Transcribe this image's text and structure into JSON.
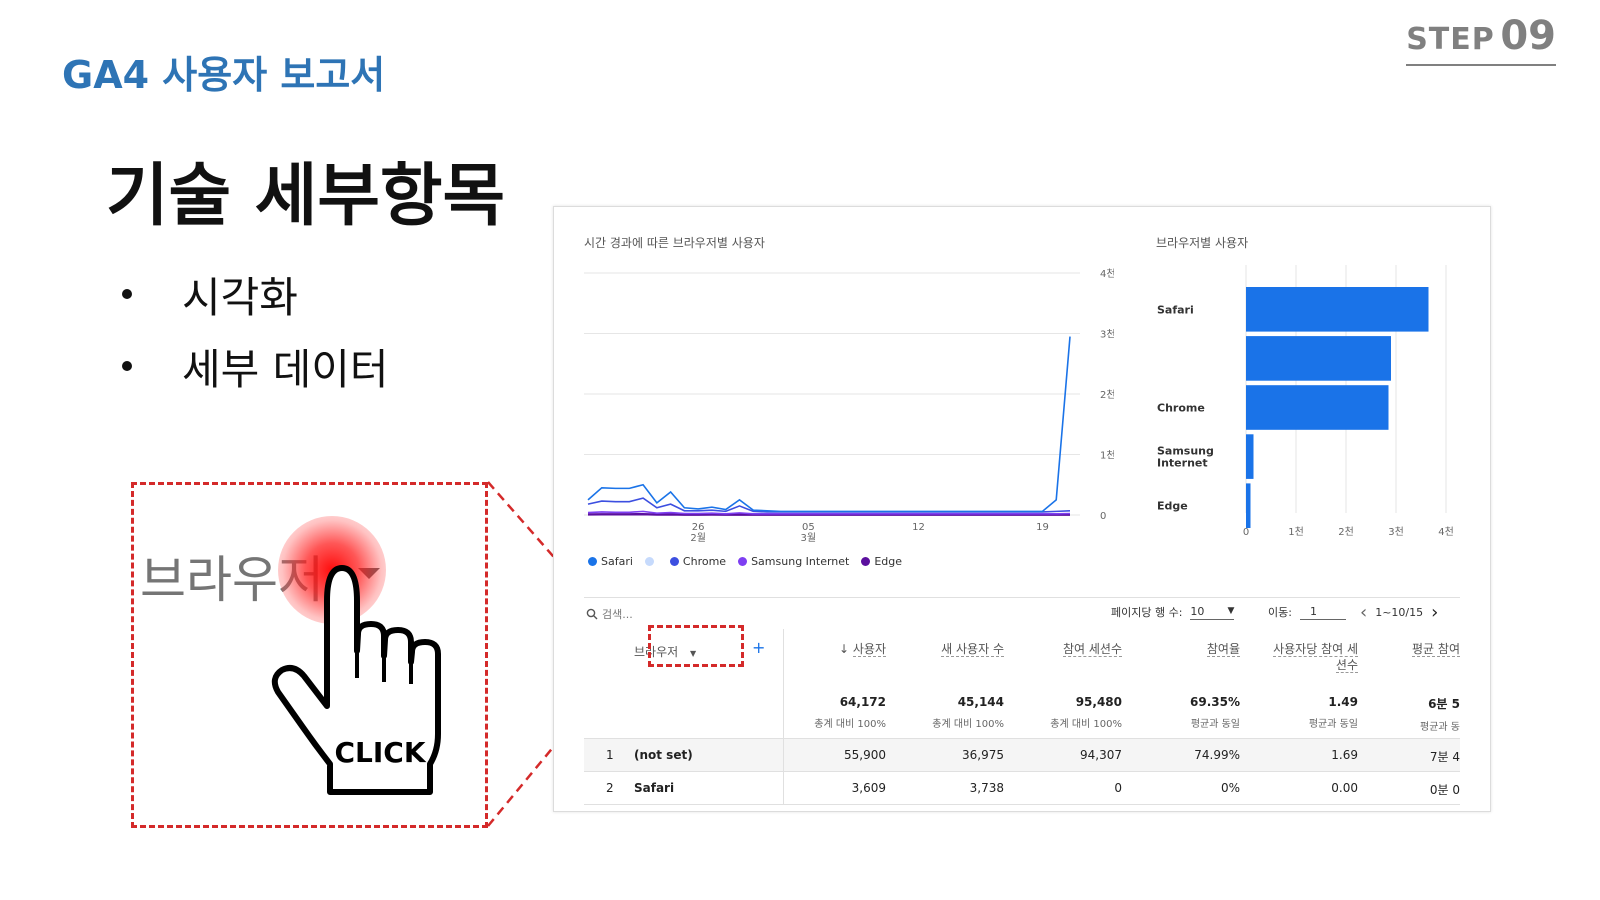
{
  "header": {
    "brand_title": "GA4 사용자 보고서",
    "step_word": "STEP",
    "step_number": "09"
  },
  "slide": {
    "headline": "기술 세부항목",
    "bullets": [
      "시각화",
      "세부 데이터"
    ]
  },
  "zoom": {
    "dimension_label": "브라우저",
    "click_text": "CLICK",
    "highlight_color": "#d42a2a"
  },
  "panel": {
    "line_chart": {
      "title": "시간 경과에 따른 브라우저별 사용자",
      "y_ticks": [
        "4천",
        "3천",
        "2천",
        "1천",
        "0"
      ],
      "x_ticks": [
        {
          "day": "26",
          "month": "2월"
        },
        {
          "day": "05",
          "month": "3월"
        },
        {
          "day": "12",
          "month": ""
        },
        {
          "day": "19",
          "month": ""
        }
      ],
      "legend": [
        {
          "name": "Safari",
          "color": "#1a73e8"
        },
        {
          "name": "",
          "color": "#c6dafc"
        },
        {
          "name": "Chrome",
          "color": "#3c4fe0"
        },
        {
          "name": "Samsung Internet",
          "color": "#7e3ff2"
        },
        {
          "name": "Edge",
          "color": "#5b0f9e"
        }
      ]
    },
    "bar_chart": {
      "title": "브라우저별 사용자",
      "category_labels": [
        "Safari",
        "",
        "Chrome",
        "Samsung Internet",
        "Edge"
      ],
      "x_ticks": [
        "0",
        "1천",
        "2천",
        "3천",
        "4천"
      ],
      "bar_color": "#1a73e8"
    },
    "toolbar": {
      "search_placeholder": "검색...",
      "rows_per_page_label": "페이지당 행 수:",
      "rows_per_page_value": "10",
      "goto_label": "이동:",
      "goto_value": "1",
      "page_range": "1~10/15"
    },
    "table": {
      "dimension_header": "브라우저",
      "add_dimension": "+",
      "columns": [
        {
          "label": "사용자",
          "sorted": true,
          "total": "64,172",
          "sub": "총계 대비 100%"
        },
        {
          "label": "새 사용자 수",
          "sorted": false,
          "total": "45,144",
          "sub": "총계 대비 100%"
        },
        {
          "label": "참여 세션수",
          "sorted": false,
          "total": "95,480",
          "sub": "총계 대비 100%"
        },
        {
          "label": "참여율",
          "sorted": false,
          "total": "69.35%",
          "sub": "평균과 동일"
        },
        {
          "label": "사용자당 참여 세션수",
          "sorted": false,
          "total": "1.49",
          "sub": "평균과 동일"
        },
        {
          "label": "평균 참여",
          "sorted": false,
          "total": "6분 5",
          "sub": "평균과 동"
        }
      ],
      "rows": [
        {
          "idx": "1",
          "name": "(not set)",
          "values": [
            "55,900",
            "36,975",
            "94,307",
            "74.99%",
            "1.69",
            "7분 4"
          ]
        },
        {
          "idx": "2",
          "name": "Safari",
          "values": [
            "3,609",
            "3,738",
            "0",
            "0%",
            "0.00",
            "0분 0"
          ]
        }
      ]
    }
  },
  "chart_data": [
    {
      "type": "line",
      "title": "시간 경과에 따른 브라우저별 사용자",
      "xlabel": "",
      "ylabel": "",
      "ylim": [
        0,
        4000
      ],
      "x_tick_labels": [
        "26 2월",
        "05 3월",
        "12",
        "19"
      ],
      "series": [
        {
          "name": "Safari",
          "values": [
            250,
            450,
            440,
            440,
            500,
            200,
            380,
            120,
            100,
            130,
            90,
            250,
            80,
            70,
            60,
            60,
            60,
            60,
            60,
            60,
            60,
            60,
            60,
            60,
            60,
            60,
            60,
            60,
            60,
            60,
            60,
            60,
            60,
            60,
            250,
            2950
          ]
        },
        {
          "name": "Chrome",
          "values": [
            180,
            230,
            220,
            220,
            280,
            120,
            180,
            70,
            70,
            80,
            60,
            150,
            60,
            50,
            50,
            50,
            50,
            50,
            50,
            50,
            50,
            50,
            50,
            50,
            50,
            50,
            50,
            50,
            50,
            50,
            50,
            50,
            50,
            50,
            60,
            70
          ]
        },
        {
          "name": "Samsung Internet",
          "values": [
            40,
            50,
            45,
            45,
            60,
            30,
            40,
            25,
            25,
            30,
            20,
            35,
            20,
            20,
            20,
            20,
            20,
            20,
            20,
            20,
            20,
            20,
            20,
            20,
            20,
            20,
            20,
            20,
            20,
            20,
            20,
            20,
            20,
            20,
            20,
            25
          ]
        },
        {
          "name": "Edge",
          "values": [
            10,
            12,
            11,
            11,
            14,
            8,
            10,
            6,
            6,
            7,
            5,
            8,
            5,
            5,
            5,
            5,
            5,
            5,
            5,
            5,
            5,
            5,
            5,
            5,
            5,
            5,
            5,
            5,
            5,
            5,
            5,
            5,
            5,
            5,
            5,
            6
          ]
        }
      ],
      "grid": true,
      "legend": "bottom"
    },
    {
      "type": "bar",
      "orientation": "horizontal",
      "title": "브라우저별 사용자",
      "categories": [
        "Safari",
        "",
        "Chrome",
        "Samsung Internet",
        "Edge"
      ],
      "values": [
        3650,
        2900,
        2850,
        150,
        90
      ],
      "xlim": [
        0,
        4000
      ],
      "x_tick_labels": [
        "0",
        "1천",
        "2천",
        "3천",
        "4천"
      ],
      "grid": true
    }
  ]
}
